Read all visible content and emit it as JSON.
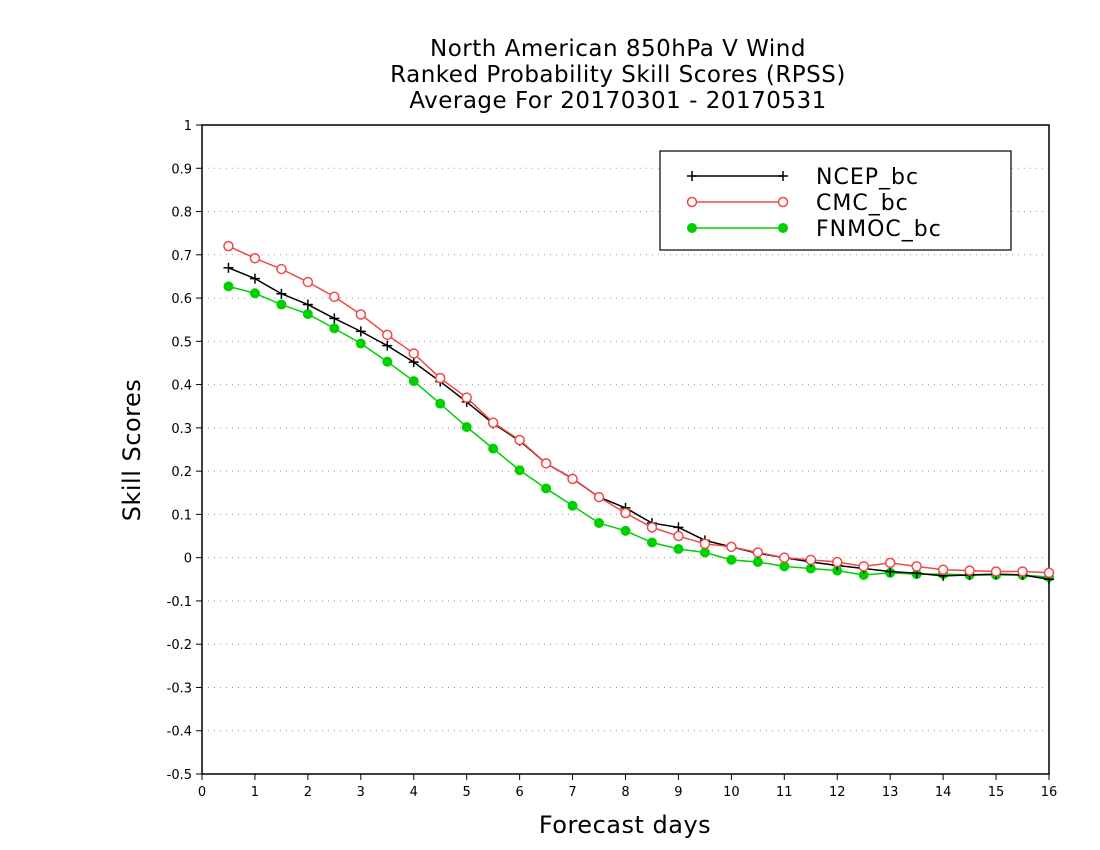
{
  "chart_data": {
    "type": "line",
    "title": [
      "North American 850hPa V Wind",
      "Ranked Probability Skill Scores (RPSS)",
      "Average For 20170301 - 20170531"
    ],
    "xlabel": "Forecast days",
    "ylabel": "Skill Scores",
    "xlim": [
      0,
      16
    ],
    "ylim": [
      -0.5,
      1
    ],
    "xticks": [
      "0",
      "1",
      "2",
      "3",
      "4",
      "5",
      "6",
      "7",
      "8",
      "9",
      "10",
      "11",
      "12",
      "13",
      "14",
      "15",
      "16"
    ],
    "yticks": [
      "1",
      "0.9",
      "0.8",
      "0.7",
      "0.6",
      "0.5",
      "0.4",
      "0.3",
      "0.2",
      "0.1",
      "0",
      "-0.1",
      "-0.2",
      "-0.3",
      "-0.4",
      "-0.5"
    ],
    "grid": true,
    "legend_position": "top-right",
    "x": [
      0.5,
      1,
      1.5,
      2,
      2.5,
      3,
      3.5,
      4,
      4.5,
      5,
      5.5,
      6,
      6.5,
      7,
      7.5,
      8,
      8.5,
      9,
      9.5,
      10,
      10.5,
      11,
      11.5,
      12,
      12.5,
      13,
      13.5,
      14,
      14.5,
      15,
      15.5,
      16
    ],
    "series": [
      {
        "name": "NCEP_bc",
        "color": "#000000",
        "marker": "plus",
        "values": [
          0.67,
          0.645,
          0.61,
          0.585,
          0.553,
          0.523,
          0.49,
          0.452,
          0.407,
          0.36,
          0.31,
          0.27,
          0.218,
          0.183,
          0.14,
          0.115,
          0.08,
          0.07,
          0.04,
          0.025,
          0.01,
          0.0,
          -0.01,
          -0.018,
          -0.025,
          -0.032,
          -0.036,
          -0.042,
          -0.04,
          -0.038,
          -0.04,
          -0.05
        ]
      },
      {
        "name": "CMC_bc",
        "color": "#f04848",
        "marker": "open-circle",
        "values": [
          0.72,
          0.692,
          0.667,
          0.637,
          0.603,
          0.562,
          0.515,
          0.472,
          0.415,
          0.37,
          0.312,
          0.272,
          0.218,
          0.182,
          0.14,
          0.103,
          0.07,
          0.05,
          0.032,
          0.025,
          0.012,
          0.0,
          -0.005,
          -0.01,
          -0.02,
          -0.012,
          -0.02,
          -0.028,
          -0.03,
          -0.032,
          -0.032,
          -0.035
        ]
      },
      {
        "name": "FNMOC_bc",
        "color": "#00d000",
        "marker": "filled-circle",
        "values": [
          0.627,
          0.611,
          0.585,
          0.563,
          0.53,
          0.495,
          0.453,
          0.408,
          0.356,
          0.302,
          0.252,
          0.202,
          0.16,
          0.12,
          0.08,
          0.062,
          0.035,
          0.02,
          0.012,
          -0.005,
          -0.01,
          -0.02,
          -0.025,
          -0.03,
          -0.04,
          -0.035,
          -0.038,
          -0.038,
          -0.04,
          -0.04,
          -0.04,
          -0.045
        ]
      }
    ]
  }
}
